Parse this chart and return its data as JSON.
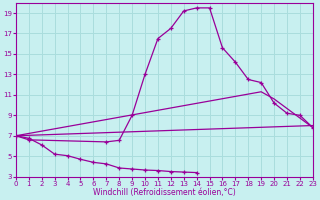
{
  "xlabel": "Windchill (Refroidissement éolien,°C)",
  "bg_color": "#c8f0f0",
  "line_color": "#990099",
  "grid_color": "#aadddd",
  "xlim": [
    0,
    23
  ],
  "ylim": [
    3,
    20
  ],
  "yticks": [
    3,
    5,
    7,
    9,
    11,
    13,
    15,
    17,
    19
  ],
  "xticks": [
    0,
    1,
    2,
    3,
    4,
    5,
    6,
    7,
    8,
    9,
    10,
    11,
    12,
    13,
    14,
    15,
    16,
    17,
    18,
    19,
    20,
    21,
    22,
    23
  ],
  "line1_x": [
    0,
    1,
    2,
    3,
    4,
    5,
    6,
    7,
    8,
    9,
    10,
    11,
    12,
    13,
    14,
    15,
    16,
    17,
    18,
    19,
    20,
    21,
    22,
    23
  ],
  "line1_y": [
    7.0,
    6.75,
    6.1,
    5.2,
    5.05,
    4.7,
    4.4,
    4.25,
    3.85,
    3.75,
    3.65,
    3.6,
    3.5,
    3.45,
    3.4,
    null,
    null,
    null,
    null,
    null,
    null,
    null,
    null,
    null
  ],
  "line2_x": [
    0,
    1,
    7,
    8,
    9,
    10,
    11,
    12,
    13,
    14,
    15,
    16,
    17,
    18,
    19,
    20,
    21,
    22,
    23
  ],
  "line2_y": [
    7.0,
    6.6,
    6.4,
    6.55,
    9.0,
    13.0,
    16.5,
    17.5,
    19.2,
    19.5,
    19.5,
    15.6,
    14.2,
    12.5,
    12.2,
    10.2,
    9.2,
    9.0,
    7.8
  ],
  "line3_x": [
    0,
    23
  ],
  "line3_y": [
    7.0,
    8.0
  ],
  "line4_x": [
    0,
    19,
    20,
    23
  ],
  "line4_y": [
    7.0,
    11.3,
    10.6,
    7.8
  ]
}
